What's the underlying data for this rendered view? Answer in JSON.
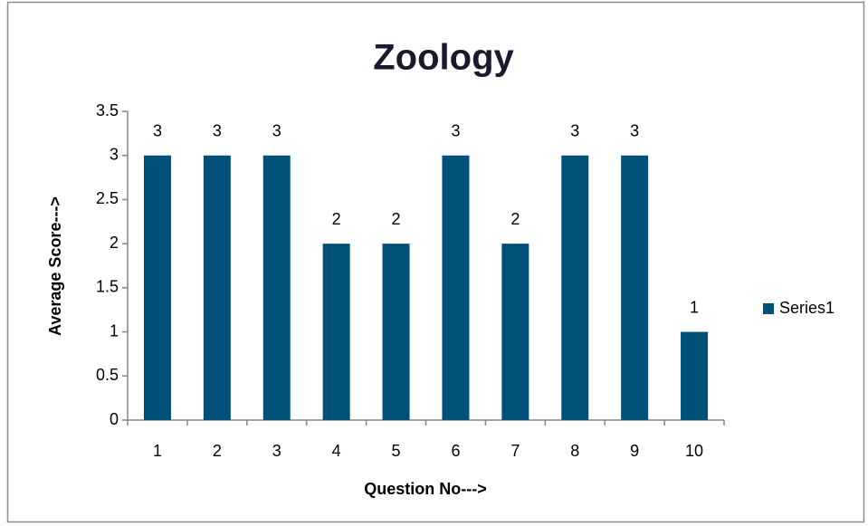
{
  "chart_data": {
    "type": "bar",
    "title": "Zoology",
    "x_label": "Question No--->",
    "y_label": "Average Score--->",
    "categories": [
      "1",
      "2",
      "3",
      "4",
      "5",
      "6",
      "7",
      "8",
      "9",
      "10"
    ],
    "series": [
      {
        "name": "Series1",
        "color": "#00517a",
        "values": [
          3,
          3,
          3,
          2,
          2,
          3,
          2,
          3,
          3,
          1
        ]
      }
    ],
    "ylim": [
      0,
      3.5
    ],
    "yticks": [
      0,
      0.5,
      1,
      1.5,
      2,
      2.5,
      3,
      3.5
    ],
    "grid": false,
    "legend": "right"
  }
}
